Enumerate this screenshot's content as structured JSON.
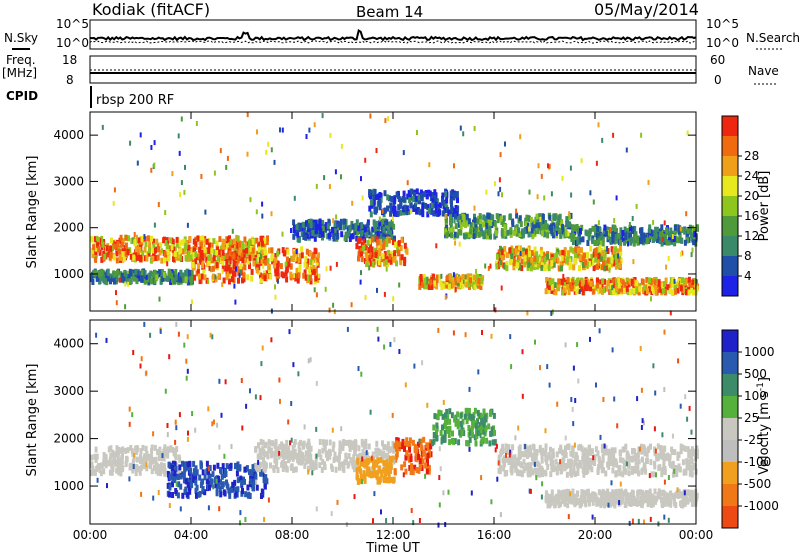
{
  "header": {
    "station": "Kodiak (fitACF)",
    "beam": "Beam 14",
    "date": "05/May/2014"
  },
  "noise_panel": {
    "left_label": "N.Sky",
    "right_label": "N.Search",
    "left_ticks": [
      "10^5",
      "10^0"
    ],
    "right_ticks": [
      "10^5",
      "10^0"
    ]
  },
  "freq_panel": {
    "left_label_1": "Freq.",
    "left_label_2": "[MHz]",
    "right_label": "Nave",
    "left_ticks": [
      "18",
      "8"
    ],
    "right_ticks": [
      "60",
      "0"
    ]
  },
  "cpid": {
    "label": "CPID",
    "value": "rbsp 200 RF"
  },
  "colors": {
    "power": [
      "#1e22e6",
      "#1f4fa6",
      "#3a8a6a",
      "#4f9a3a",
      "#8ec61e",
      "#e8e81e",
      "#f0a018",
      "#f06a10",
      "#ee2810"
    ],
    "velocity": [
      "#1e22c8",
      "#2a5ab0",
      "#3c8c6a",
      "#56b03c",
      "#c8c8c0",
      "#bebebe",
      "#f0a01e",
      "#f07816",
      "#ee4a14",
      "#e81810"
    ]
  },
  "chart_data": [
    {
      "type": "heatmap",
      "name": "power",
      "ylabel": "Slant Range [km]",
      "yticks": [
        "1000",
        "2000",
        "3000",
        "4000"
      ],
      "ylim": [
        200,
        4500
      ],
      "xlim": [
        0,
        24
      ],
      "colorbar_label": "Power [dB]",
      "colorbar_ticks": [
        "4",
        "8",
        "12",
        "16",
        "20",
        "24",
        "28"
      ],
      "bands": [
        {
          "t0": 0.0,
          "t1": 7.0,
          "r": 1600,
          "w": 250,
          "v": 24
        },
        {
          "t0": 0.0,
          "t1": 4.0,
          "r": 1000,
          "w": 120,
          "v": 10
        },
        {
          "t0": 4.0,
          "t1": 9.0,
          "r": 1250,
          "w": 350,
          "v": 27
        },
        {
          "t0": 8.0,
          "t1": 12.0,
          "r": 2000,
          "w": 200,
          "v": 8
        },
        {
          "t0": 10.5,
          "t1": 12.5,
          "r": 1550,
          "w": 280,
          "v": 26
        },
        {
          "t0": 11.0,
          "t1": 14.5,
          "r": 2600,
          "w": 250,
          "v": 6
        },
        {
          "t0": 14.0,
          "t1": 19.0,
          "r": 2100,
          "w": 230,
          "v": 12
        },
        {
          "t0": 16.0,
          "t1": 21.0,
          "r": 1400,
          "w": 220,
          "v": 22
        },
        {
          "t0": 19.0,
          "t1": 24.0,
          "r": 1900,
          "w": 180,
          "v": 10
        },
        {
          "t0": 18.0,
          "t1": 24.0,
          "r": 800,
          "w": 140,
          "v": 24
        },
        {
          "t0": 13.0,
          "t1": 15.5,
          "r": 900,
          "w": 120,
          "v": 22
        }
      ]
    },
    {
      "type": "heatmap",
      "name": "velocity",
      "ylabel": "Slant Range [km]",
      "yticks": [
        "1000",
        "2000",
        "3000",
        "4000"
      ],
      "ylim": [
        200,
        4500
      ],
      "xlim": [
        0,
        24
      ],
      "xlabel": "Time UT",
      "xticks": [
        "00:00",
        "04:00",
        "08:00",
        "12:00",
        "16:00",
        "20:00",
        "00:00"
      ],
      "colorbar_label": "Velocity [m s^-1]",
      "colorbar_ticks": [
        "1000",
        "500",
        "100",
        "25",
        "-25",
        "-100",
        "-500",
        "-1000"
      ],
      "bands": [
        {
          "t0": 0.0,
          "t1": 3.5,
          "r": 1600,
          "w": 280,
          "v": 0
        },
        {
          "t0": 3.0,
          "t1": 7.0,
          "r": 1200,
          "w": 350,
          "v": 700
        },
        {
          "t0": 6.5,
          "t1": 12.0,
          "r": 1700,
          "w": 300,
          "v": 0
        },
        {
          "t0": 12.0,
          "t1": 13.5,
          "r": 1700,
          "w": 350,
          "v": -700
        },
        {
          "t0": 10.5,
          "t1": 12.0,
          "r": 1400,
          "w": 250,
          "v": -200
        },
        {
          "t0": 13.5,
          "t1": 16.0,
          "r": 2300,
          "w": 350,
          "v": 60
        },
        {
          "t0": 16.0,
          "t1": 24.0,
          "r": 1600,
          "w": 300,
          "v": 0
        },
        {
          "t0": 18.0,
          "t1": 24.0,
          "r": 800,
          "w": 150,
          "v": 0
        }
      ]
    }
  ]
}
